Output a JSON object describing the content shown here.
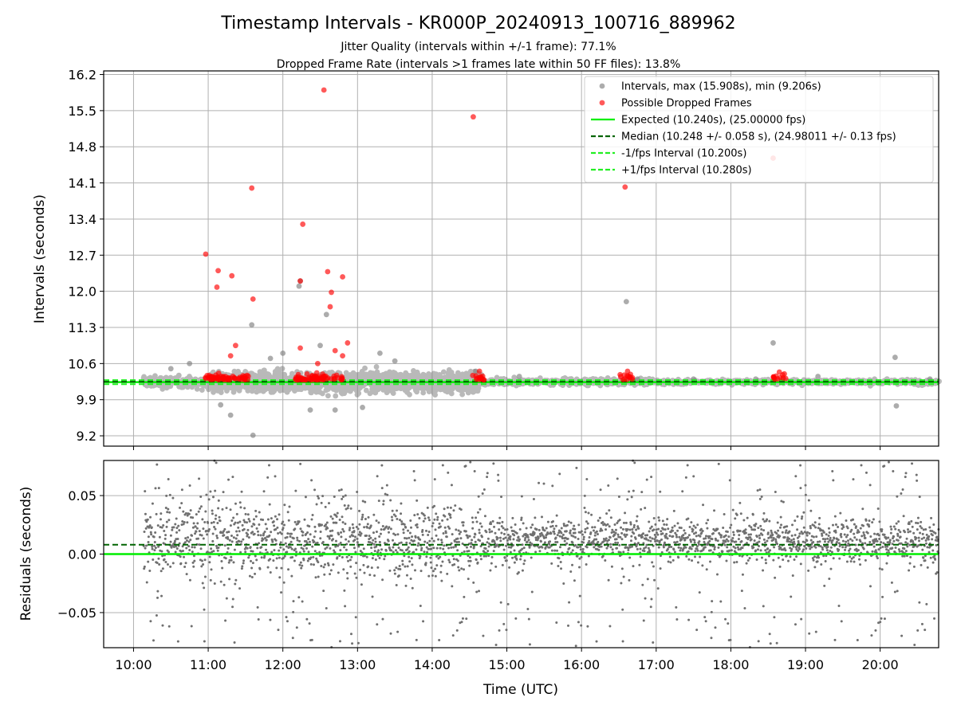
{
  "figure": {
    "title": "Timestamp Intervals - KR000P_20240913_100716_889962",
    "subtitle_line1": "Jitter Quality (intervals within +/-1 frame): 77.1%",
    "subtitle_line2": "Dropped Frame Rate (intervals >1 frames late within 50 FF files): 13.8%",
    "xlabel": "Time (UTC)"
  },
  "chart_data": [
    {
      "type": "scatter",
      "panel": "top",
      "ylabel": "Intervals (seconds)",
      "ylim": [
        9.0,
        16.27
      ],
      "xlim": [
        "09:36",
        "20:47"
      ],
      "yticks": [
        "9.2",
        "9.9",
        "10.6",
        "11.3",
        "12.0",
        "12.7",
        "13.4",
        "14.1",
        "14.8",
        "15.5",
        "16.2"
      ],
      "xticks": [
        "10:00",
        "11:00",
        "12:00",
        "13:00",
        "14:00",
        "15:00",
        "16:00",
        "17:00",
        "18:00",
        "19:00",
        "20:00"
      ],
      "grid": true,
      "legend_position": "upper-right",
      "legend": [
        {
          "label": "Intervals, max (15.908s), min (9.206s)",
          "kind": "marker",
          "color": "#808080"
        },
        {
          "label": "Possible Dropped Frames",
          "kind": "marker",
          "color": "#ff0000"
        },
        {
          "label": "Expected (10.240s), (25.00000 fps)",
          "kind": "solid",
          "color": "#00ee00"
        },
        {
          "label": "Median (10.248 +/- 0.058 s), (24.98011 +/- 0.13 fps)",
          "kind": "dashed",
          "color": "#006400"
        },
        {
          "label": "-1/fps Interval (10.200s)",
          "kind": "dashed",
          "color": "#22ee22"
        },
        {
          "label": "+1/fps Interval (10.280s)",
          "kind": "dashed",
          "color": "#22ee22"
        }
      ],
      "reference_lines": {
        "expected": 10.24,
        "median": 10.248,
        "minus_one_fps": 10.2,
        "plus_one_fps": 10.28
      },
      "series": [
        {
          "name": "Intervals, max (15.908s), min (9.206s)",
          "color": "#808080",
          "points": [
            [
              "11:35",
              11.35
            ],
            [
              "12:13",
              12.1
            ],
            [
              "12:14",
              12.2
            ],
            [
              "12:35",
              11.55
            ],
            [
              "11:36",
              9.21
            ],
            [
              "11:18",
              9.6
            ],
            [
              "12:42",
              9.7
            ],
            [
              "13:04",
              9.75
            ],
            [
              "16:36",
              11.8
            ],
            [
              "18:34",
              11.0
            ],
            [
              "20:12",
              10.72
            ],
            [
              "20:13",
              9.78
            ],
            [
              "12:22",
              9.7
            ],
            [
              "11:10",
              9.8
            ],
            [
              "13:18",
              10.8
            ],
            [
              "12:00",
              10.8
            ],
            [
              "10:30",
              10.5
            ],
            [
              "10:45",
              10.6
            ],
            [
              "11:50",
              10.7
            ],
            [
              "13:30",
              10.65
            ],
            [
              "12:30",
              10.95
            ],
            [
              "14:35",
              10.45
            ],
            [
              "15:10",
              10.35
            ],
            [
              "16:45",
              10.3
            ],
            [
              "17:30",
              10.3
            ],
            [
              "18:20",
              10.3
            ],
            [
              "19:10",
              10.35
            ],
            [
              "20:40",
              10.3
            ]
          ]
        },
        {
          "name": "Possible Dropped Frames",
          "color": "#ff0000",
          "points": [
            [
              "10:58",
              12.72
            ],
            [
              "11:08",
              12.4
            ],
            [
              "11:07",
              12.08
            ],
            [
              "11:19",
              12.3
            ],
            [
              "11:22",
              10.95
            ],
            [
              "11:18",
              10.75
            ],
            [
              "11:36",
              11.85
            ],
            [
              "11:35",
              14.0
            ],
            [
              "12:14",
              12.2
            ],
            [
              "12:14",
              10.9
            ],
            [
              "12:16",
              13.3
            ],
            [
              "12:36",
              12.38
            ],
            [
              "12:39",
              11.98
            ],
            [
              "12:38",
              11.7
            ],
            [
              "12:48",
              12.28
            ],
            [
              "12:42",
              10.85
            ],
            [
              "12:48",
              10.75
            ],
            [
              "12:52",
              11.0
            ],
            [
              "12:28",
              10.6
            ],
            [
              "12:33",
              15.9
            ],
            [
              "14:33",
              15.38
            ],
            [
              "14:38",
              10.45
            ],
            [
              "16:35",
              14.02
            ],
            [
              "16:37",
              10.45
            ],
            [
              "18:34",
              14.58
            ],
            [
              "18:43",
              10.4
            ]
          ]
        }
      ]
    },
    {
      "type": "scatter",
      "panel": "bottom",
      "ylabel": "Residuals (seconds)",
      "ylim": [
        -0.08,
        0.08
      ],
      "yticks": [
        "−0.05",
        "0.00",
        "0.05"
      ],
      "grid": true,
      "reference_lines": {
        "zero": 0.0,
        "median_offset": 0.008
      },
      "series": [
        {
          "name": "",
          "color": "#707070"
        }
      ]
    }
  ]
}
